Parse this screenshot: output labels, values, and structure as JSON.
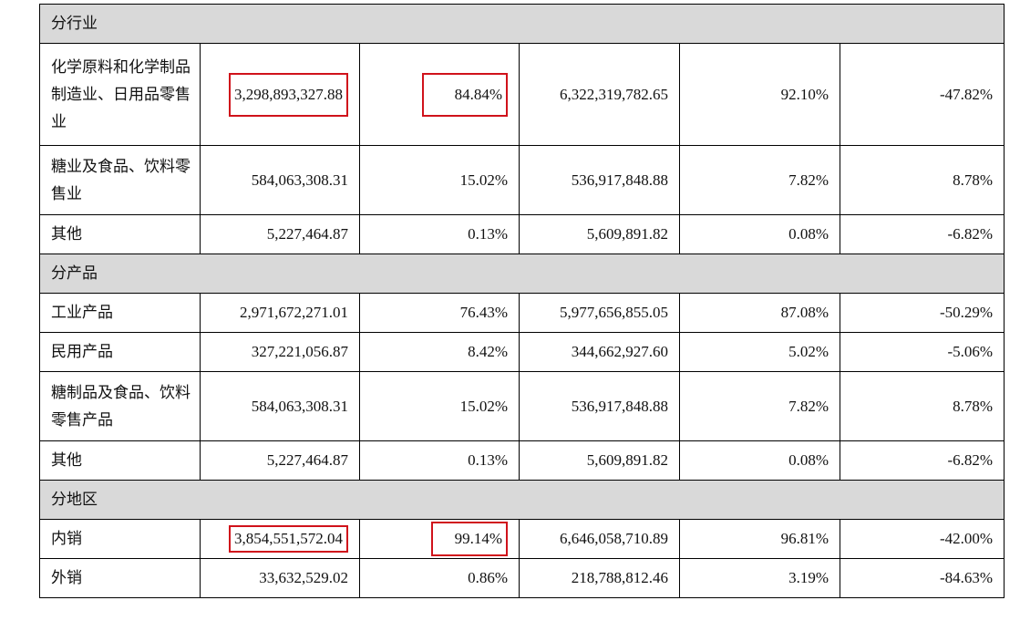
{
  "sections": [
    {
      "title": "分行业",
      "rows": [
        {
          "label": "化学原料和化学制品制造业、日用品零售业",
          "amount": "3,298,893,327.88",
          "ratio": "84.84%",
          "prior_amount": "6,322,319,782.65",
          "prior_ratio": "92.10%",
          "change": "-47.82%"
        },
        {
          "label": "糖业及食品、饮料零售业",
          "amount": "584,063,308.31",
          "ratio": "15.02%",
          "prior_amount": "536,917,848.88",
          "prior_ratio": "7.82%",
          "change": "8.78%"
        },
        {
          "label": "其他",
          "amount": "5,227,464.87",
          "ratio": "0.13%",
          "prior_amount": "5,609,891.82",
          "prior_ratio": "0.08%",
          "change": "-6.82%"
        }
      ]
    },
    {
      "title": "分产品",
      "rows": [
        {
          "label": "工业产品",
          "amount": "2,971,672,271.01",
          "ratio": "76.43%",
          "prior_amount": "5,977,656,855.05",
          "prior_ratio": "87.08%",
          "change": "-50.29%"
        },
        {
          "label": "民用产品",
          "amount": "327,221,056.87",
          "ratio": "8.42%",
          "prior_amount": "344,662,927.60",
          "prior_ratio": "5.02%",
          "change": "-5.06%"
        },
        {
          "label": "糖制品及食品、饮料零售产品",
          "amount": "584,063,308.31",
          "ratio": "15.02%",
          "prior_amount": "536,917,848.88",
          "prior_ratio": "7.82%",
          "change": "8.78%"
        },
        {
          "label": "其他",
          "amount": "5,227,464.87",
          "ratio": "0.13%",
          "prior_amount": "5,609,891.82",
          "prior_ratio": "0.08%",
          "change": "-6.82%"
        }
      ]
    },
    {
      "title": "分地区",
      "rows": [
        {
          "label": "内销",
          "amount": "3,854,551,572.04",
          "ratio": "99.14%",
          "prior_amount": "6,646,058,710.89",
          "prior_ratio": "96.81%",
          "change": "-42.00%"
        },
        {
          "label": "外销",
          "amount": "33,632,529.02",
          "ratio": "0.86%",
          "prior_amount": "218,788,812.46",
          "prior_ratio": "3.19%",
          "change": "-84.63%"
        }
      ]
    }
  ],
  "highlight_color": "#d0121b"
}
